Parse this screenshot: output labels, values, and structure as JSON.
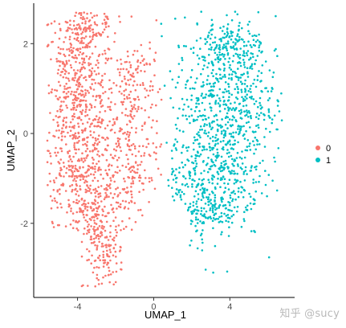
{
  "chart_data": {
    "type": "scatter",
    "title": "",
    "xlabel": "UMAP_1",
    "ylabel": "UMAP_2",
    "xlim": [
      -6.3,
      7.4
    ],
    "ylim": [
      -3.65,
      2.9
    ],
    "xticks": [
      -4,
      0,
      4
    ],
    "yticks": [
      -2,
      0,
      2
    ],
    "legend_position": "right",
    "series": [
      {
        "name": "0",
        "color": "#F8766D",
        "clusters": [
          {
            "cx": -4.0,
            "cy": 0.6,
            "sx": 1.0,
            "sy": 1.25,
            "n": 620
          },
          {
            "cx": -3.3,
            "cy": -1.6,
            "sx": 0.9,
            "sy": 0.8,
            "n": 320
          },
          {
            "cx": -2.5,
            "cy": -2.7,
            "sx": 0.45,
            "sy": 0.4,
            "n": 80
          },
          {
            "cx": -1.0,
            "cy": 0.8,
            "sx": 0.7,
            "sy": 0.75,
            "n": 170
          },
          {
            "cx": -1.2,
            "cy": -0.8,
            "sx": 0.7,
            "sy": 0.6,
            "n": 130
          },
          {
            "cx": -3.6,
            "cy": 2.3,
            "sx": 0.55,
            "sy": 0.25,
            "n": 90
          }
        ]
      },
      {
        "name": "1",
        "color": "#00BFC4",
        "clusters": [
          {
            "cx": 3.7,
            "cy": 0.7,
            "sx": 1.35,
            "sy": 0.95,
            "n": 620
          },
          {
            "cx": 3.0,
            "cy": -1.1,
            "sx": 1.35,
            "sy": 0.65,
            "n": 380
          },
          {
            "cx": 4.3,
            "cy": 1.9,
            "sx": 0.85,
            "sy": 0.3,
            "n": 120
          },
          {
            "cx": 2.5,
            "cy": -1.9,
            "sx": 0.45,
            "sy": 0.25,
            "n": 40
          }
        ]
      }
    ]
  },
  "watermark": "知乎 @sucy"
}
